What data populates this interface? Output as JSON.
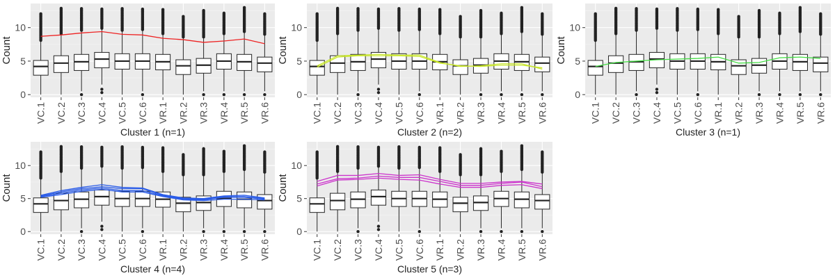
{
  "figure": {
    "ylabel": "Count",
    "categories": [
      "VC.1",
      "VC.2",
      "VC.3",
      "VC.4",
      "VC.5",
      "VC.6",
      "VR.1",
      "VR.2",
      "VR.3",
      "VR.4",
      "VR.5",
      "VR.6"
    ],
    "yticks": [
      0,
      5,
      10
    ],
    "ylim": [
      -0.4,
      13.6
    ]
  },
  "chart_data": [
    {
      "type": "boxplot",
      "title": "Cluster 1 (n=1)",
      "xlabel": "Cluster 1 (n=1)",
      "ylabel": "Count",
      "categories": [
        "VC.1",
        "VC.2",
        "VC.3",
        "VC.4",
        "VC.5",
        "VC.6",
        "VR.1",
        "VR.2",
        "VR.3",
        "VR.4",
        "VR.5",
        "VR.6"
      ],
      "ylim": [
        -0.4,
        13.6
      ],
      "line_color": "#ee2222",
      "series": [
        {
          "values": [
            8.7,
            8.9,
            9.2,
            9.4,
            9.0,
            8.9,
            8.4,
            8.2,
            7.8,
            8.0,
            8.3,
            7.6
          ]
        }
      ]
    },
    {
      "type": "boxplot",
      "title": "Cluster 2 (n=2)",
      "xlabel": "Cluster 2 (n=2)",
      "ylabel": "Count",
      "categories": [
        "VC.1",
        "VC.2",
        "VC.3",
        "VC.4",
        "VC.5",
        "VC.6",
        "VR.1",
        "VR.2",
        "VR.3",
        "VR.4",
        "VR.5",
        "VR.6"
      ],
      "ylim": [
        -0.4,
        13.6
      ],
      "line_color": "#c8e62a",
      "series": [
        {
          "values": [
            4.3,
            5.8,
            5.9,
            6.0,
            5.9,
            5.9,
            4.8,
            4.2,
            4.3,
            4.6,
            4.6,
            3.8
          ]
        },
        {
          "values": [
            4.1,
            5.6,
            5.8,
            5.8,
            5.8,
            5.7,
            4.7,
            4.3,
            4.2,
            4.4,
            4.4,
            4.0
          ]
        }
      ]
    },
    {
      "type": "boxplot",
      "title": "Cluster 3 (n=1)",
      "xlabel": "Cluster 3 (n=1)",
      "ylabel": "Count",
      "categories": [
        "VC.1",
        "VC.2",
        "VC.3",
        "VC.4",
        "VC.5",
        "VC.6",
        "VR.1",
        "VR.2",
        "VR.3",
        "VR.4",
        "VR.5",
        "VR.6"
      ],
      "ylim": [
        -0.4,
        13.6
      ],
      "line_color": "#44dd44",
      "series": [
        {
          "values": [
            4.2,
            4.8,
            5.0,
            5.2,
            5.3,
            5.4,
            5.6,
            4.7,
            4.8,
            5.5,
            5.6,
            5.4
          ]
        }
      ]
    },
    {
      "type": "boxplot",
      "title": "Cluster 4 (n=4)",
      "xlabel": "Cluster 4 (n=4)",
      "ylabel": "Count",
      "categories": [
        "VC.1",
        "VC.2",
        "VC.3",
        "VC.4",
        "VC.5",
        "VC.6",
        "VR.1",
        "VR.2",
        "VR.3",
        "VR.4",
        "VR.5",
        "VR.6"
      ],
      "ylim": [
        -0.4,
        13.6
      ],
      "line_color": "#2a5ce8",
      "series": [
        {
          "values": [
            5.5,
            6.2,
            6.7,
            7.1,
            6.7,
            6.6,
            5.6,
            5.1,
            5.0,
            5.4,
            5.5,
            5.1
          ]
        },
        {
          "values": [
            5.4,
            6.0,
            6.5,
            6.8,
            6.5,
            6.5,
            5.5,
            5.0,
            4.9,
            5.3,
            5.3,
            5.0
          ]
        },
        {
          "values": [
            5.3,
            5.8,
            6.3,
            6.6,
            6.2,
            6.2,
            5.4,
            4.9,
            4.8,
            5.2,
            5.2,
            4.9
          ]
        },
        {
          "values": [
            5.2,
            5.6,
            6.1,
            6.4,
            6.0,
            6.0,
            5.3,
            4.8,
            4.7,
            4.9,
            4.9,
            4.8
          ]
        }
      ]
    },
    {
      "type": "boxplot",
      "title": "Cluster 5 (n=3)",
      "xlabel": "Cluster 5 (n=3)",
      "ylabel": "Count",
      "categories": [
        "VC.1",
        "VC.2",
        "VC.3",
        "VC.4",
        "VC.5",
        "VC.6",
        "VR.1",
        "VR.2",
        "VR.3",
        "VR.4",
        "VR.5",
        "VR.6"
      ],
      "ylim": [
        -0.4,
        13.6
      ],
      "line_color": "#cc33cc",
      "series": [
        {
          "values": [
            7.6,
            8.5,
            8.5,
            8.8,
            8.5,
            8.6,
            7.9,
            7.3,
            7.3,
            7.5,
            7.6,
            7.2
          ]
        },
        {
          "values": [
            7.2,
            8.0,
            8.1,
            8.4,
            8.2,
            8.2,
            7.6,
            7.0,
            7.0,
            7.3,
            7.5,
            6.8
          ]
        },
        {
          "values": [
            6.9,
            7.8,
            7.9,
            8.1,
            7.9,
            7.8,
            7.2,
            6.7,
            6.7,
            7.0,
            7.1,
            6.5
          ]
        }
      ]
    }
  ],
  "boxplot_stats": [
    {
      "cat": "VC.1",
      "q1": 2.9,
      "median": 4.2,
      "q3": 5.1,
      "whisker_low": 0.0,
      "whisker_high": 8.0,
      "outlier_low": [],
      "outlier_high_from": 8.1,
      "outlier_high_to": 12.2
    },
    {
      "cat": "VC.2",
      "q1": 3.3,
      "median": 4.7,
      "q3": 5.8,
      "whisker_low": 0.0,
      "whisker_high": 9.0,
      "outlier_low": [],
      "outlier_high_from": 9.1,
      "outlier_high_to": 13.0
    },
    {
      "cat": "VC.3",
      "q1": 3.6,
      "median": 4.9,
      "q3": 6.0,
      "whisker_low": 0.5,
      "whisker_high": 9.5,
      "outlier_low": [
        0.0
      ],
      "outlier_high_from": 9.6,
      "outlier_high_to": 13.0
    },
    {
      "cat": "VC.4",
      "q1": 4.0,
      "median": 5.3,
      "q3": 6.3,
      "whisker_low": 1.5,
      "whisker_high": 9.8,
      "outlier_low": [
        0.3,
        0.8
      ],
      "outlier_high_from": 9.9,
      "outlier_high_to": 12.8
    },
    {
      "cat": "VC.5",
      "q1": 3.8,
      "median": 5.0,
      "q3": 6.1,
      "whisker_low": 0.0,
      "whisker_high": 9.5,
      "outlier_low": [],
      "outlier_high_from": 9.6,
      "outlier_high_to": 13.0
    },
    {
      "cat": "VC.6",
      "q1": 3.8,
      "median": 5.0,
      "q3": 6.1,
      "whisker_low": 0.5,
      "whisker_high": 9.6,
      "outlier_low": [
        0.0
      ],
      "outlier_high_from": 9.7,
      "outlier_high_to": 12.8
    },
    {
      "cat": "VR.1",
      "q1": 3.7,
      "median": 4.9,
      "q3": 6.0,
      "whisker_low": 0.0,
      "whisker_high": 9.0,
      "outlier_low": [],
      "outlier_high_from": 9.1,
      "outlier_high_to": 12.8
    },
    {
      "cat": "VR.2",
      "q1": 3.0,
      "median": 4.3,
      "q3": 5.2,
      "whisker_low": 0.0,
      "whisker_high": 8.5,
      "outlier_low": [],
      "outlier_high_from": 8.6,
      "outlier_high_to": 11.8
    },
    {
      "cat": "VR.3",
      "q1": 3.2,
      "median": 4.4,
      "q3": 5.4,
      "whisker_low": 0.5,
      "whisker_high": 8.5,
      "outlier_low": [
        0.0
      ],
      "outlier_high_from": 8.6,
      "outlier_high_to": 12.6
    },
    {
      "cat": "VR.4",
      "q1": 3.8,
      "median": 5.0,
      "q3": 6.1,
      "whisker_low": 0.5,
      "whisker_high": 9.0,
      "outlier_low": [
        0.0
      ],
      "outlier_high_from": 9.1,
      "outlier_high_to": 12.2
    },
    {
      "cat": "VR.5",
      "q1": 3.6,
      "median": 4.9,
      "q3": 6.0,
      "whisker_low": 0.5,
      "whisker_high": 9.3,
      "outlier_low": [
        0.0
      ],
      "outlier_high_from": 9.4,
      "outlier_high_to": 13.0
    },
    {
      "cat": "VR.6",
      "q1": 3.4,
      "median": 4.7,
      "q3": 5.6,
      "whisker_low": 0.5,
      "whisker_high": 8.9,
      "outlier_low": [
        0.0
      ],
      "outlier_high_from": 9.0,
      "outlier_high_to": 12.2
    }
  ],
  "colors": {
    "panel_bg": "#ebebeb",
    "grid_major": "#ffffff",
    "box_fill": "#ffffff",
    "box_stroke": "#222222",
    "outlier": "#222222",
    "text": "#222222"
  }
}
